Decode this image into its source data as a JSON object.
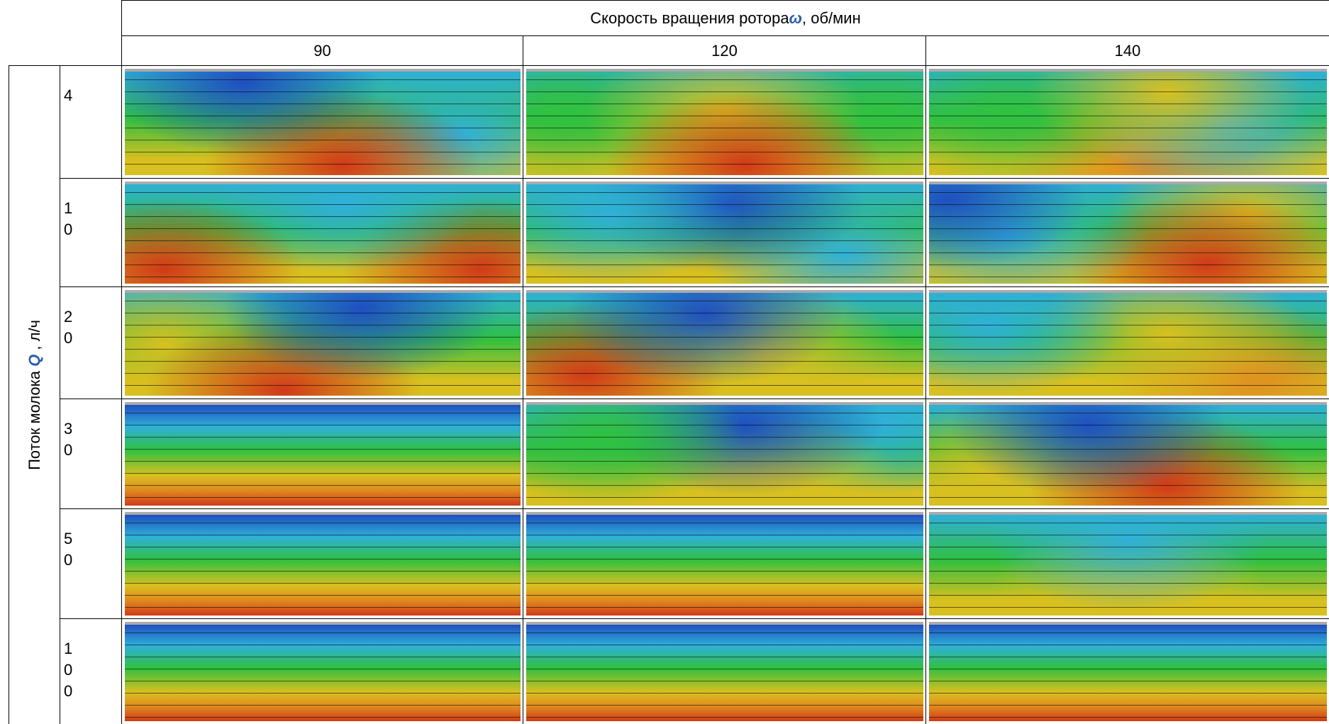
{
  "table": {
    "header": {
      "title": [
        "Скорость вращения ротора ",
        "ω",
        ", об/мин"
      ],
      "columns": [
        "90",
        "120",
        "140"
      ]
    },
    "row_header": [
      "Поток молока ",
      "Q",
      " , л/ч"
    ],
    "rows": [
      "4",
      "10",
      "20",
      "30",
      "50",
      "100"
    ]
  }
}
